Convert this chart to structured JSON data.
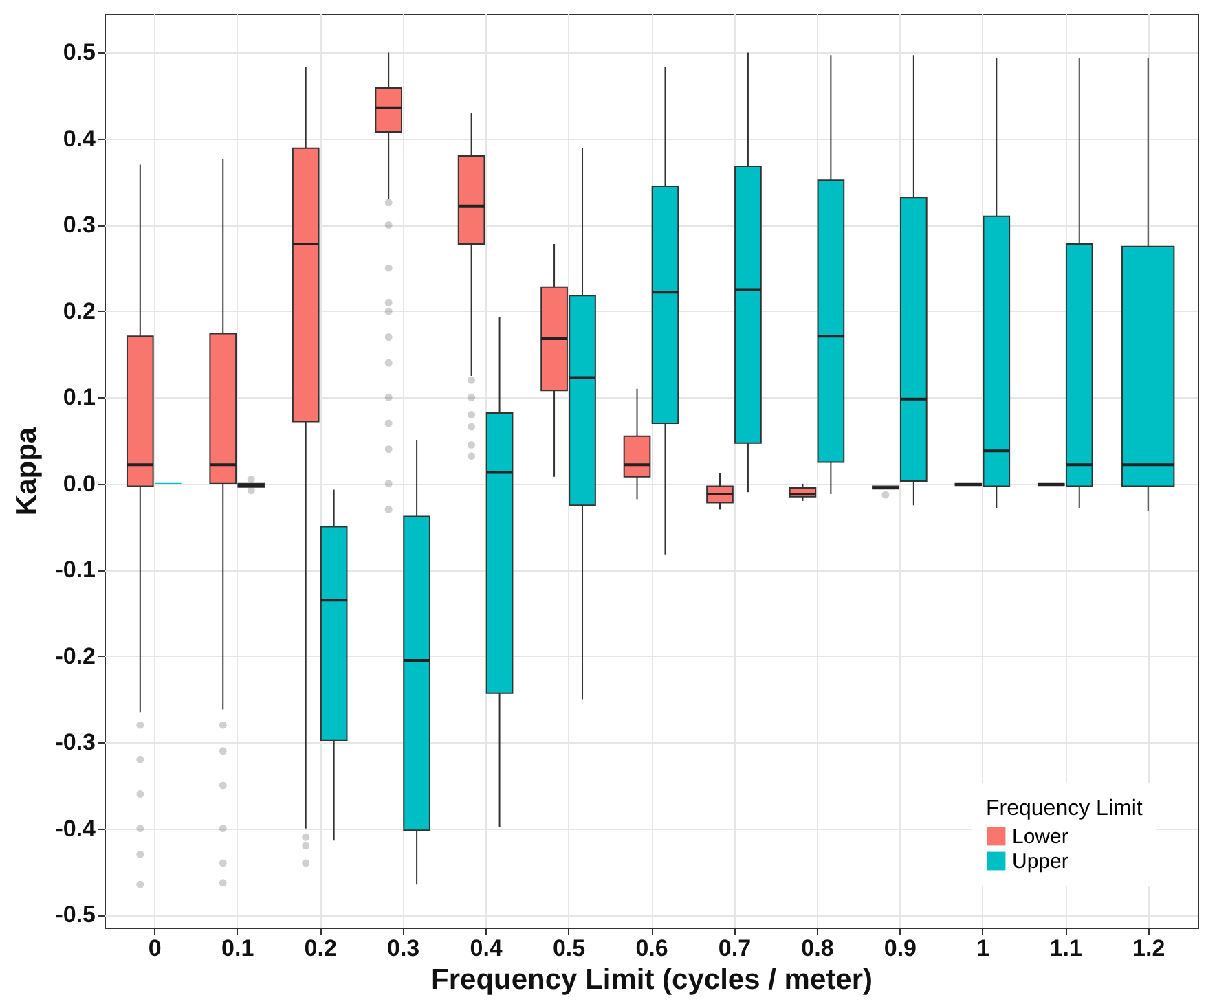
{
  "chart_data": {
    "type": "box",
    "xlabel": "Frequency Limit (cycles / meter)",
    "ylabel": "Kappa",
    "legend_title": "Frequency Limit",
    "legend": "bottom right",
    "grid": true,
    "categories": [
      "0",
      "0.1",
      "0.2",
      "0.3",
      "0.4",
      "0.5",
      "0.6",
      "0.7",
      "0.8",
      "0.9",
      "1",
      "1.1",
      "1.2"
    ],
    "ylim": [
      -0.515,
      0.545
    ],
    "yticks": [
      -0.5,
      -0.4,
      -0.3,
      -0.2,
      -0.1,
      {
        "value": 0,
        "label": "0.0"
      },
      0.1,
      0.2,
      0.3,
      0.4,
      0.5
    ],
    "series": [
      {
        "name": "Lower",
        "color": "#f8766d",
        "boxes": [
          {
            "low": -0.265,
            "q1": -0.003,
            "median": 0.022,
            "q3": 0.171,
            "high": 0.37,
            "outliers": [
              -0.28,
              -0.32,
              -0.36,
              -0.4,
              -0.43,
              -0.465
            ]
          },
          {
            "low": -0.262,
            "q1": 0.0,
            "median": 0.022,
            "q3": 0.174,
            "high": 0.376,
            "outliers": [
              -0.28,
              -0.31,
              -0.35,
              -0.4,
              -0.44,
              -0.463
            ]
          },
          {
            "low": -0.4,
            "q1": 0.072,
            "median": 0.278,
            "q3": 0.389,
            "high": 0.483,
            "outliers": [
              -0.41,
              -0.42,
              -0.44
            ]
          },
          {
            "low": 0.33,
            "q1": 0.408,
            "median": 0.436,
            "q3": 0.459,
            "high": 0.5,
            "outliers": [
              0.326,
              0.3,
              0.25,
              0.21,
              0.2,
              0.17,
              0.14,
              0.1,
              0.07,
              0.04,
              0.0,
              -0.03
            ]
          },
          {
            "low": 0.125,
            "q1": 0.278,
            "median": 0.322,
            "q3": 0.38,
            "high": 0.43,
            "outliers": [
              0.12,
              0.1,
              0.08,
              0.066,
              0.045,
              0.032
            ]
          },
          {
            "low": 0.008,
            "q1": 0.108,
            "median": 0.168,
            "q3": 0.228,
            "high": 0.278
          },
          {
            "low": -0.018,
            "q1": 0.008,
            "median": 0.022,
            "q3": 0.055,
            "high": 0.11
          },
          {
            "low": -0.03,
            "q1": -0.022,
            "median": -0.012,
            "q3": -0.003,
            "high": 0.012
          },
          {
            "low": -0.02,
            "q1": -0.015,
            "median": -0.012,
            "q3": -0.005,
            "high": 0.0
          },
          {
            "low": -0.006,
            "q1": -0.006,
            "median": -0.005,
            "q3": -0.003,
            "high": -0.003,
            "outliers": [
              -0.013
            ]
          },
          {
            "low": -0.002,
            "q1": -0.002,
            "median": -0.001,
            "q3": 0.0,
            "high": 0.0
          },
          {
            "low": -0.002,
            "q1": -0.002,
            "median": -0.001,
            "q3": 0.0,
            "high": 0.0
          },
          null
        ]
      },
      {
        "name": "Upper",
        "color": "#00bfc4",
        "boxes": [
          {
            "low": 0.0,
            "q1": 0.0,
            "median": 0.0,
            "q3": 0.0,
            "high": 0.0
          },
          {
            "low": -0.002,
            "q1": -0.004,
            "median": -0.002,
            "q3": 0.0,
            "high": 0.0,
            "outliers": [
              0.005,
              -0.008
            ]
          },
          {
            "low": -0.414,
            "q1": -0.298,
            "median": -0.135,
            "q3": -0.05,
            "high": -0.007
          },
          {
            "low": -0.465,
            "q1": -0.402,
            "median": -0.205,
            "q3": -0.038,
            "high": 0.05
          },
          {
            "low": -0.398,
            "q1": -0.243,
            "median": 0.013,
            "q3": 0.082,
            "high": 0.193
          },
          {
            "low": -0.25,
            "q1": -0.025,
            "median": 0.123,
            "q3": 0.218,
            "high": 0.389
          },
          {
            "low": -0.082,
            "q1": 0.07,
            "median": 0.222,
            "q3": 0.345,
            "high": 0.483
          },
          {
            "low": -0.01,
            "q1": 0.047,
            "median": 0.225,
            "q3": 0.368,
            "high": 0.5
          },
          {
            "low": -0.012,
            "q1": 0.025,
            "median": 0.171,
            "q3": 0.352,
            "high": 0.497
          },
          {
            "low": -0.025,
            "q1": 0.003,
            "median": 0.098,
            "q3": 0.332,
            "high": 0.497
          },
          {
            "low": -0.028,
            "q1": -0.003,
            "median": 0.038,
            "q3": 0.31,
            "high": 0.494
          },
          {
            "low": -0.028,
            "q1": -0.003,
            "median": 0.022,
            "q3": 0.278,
            "high": 0.494
          },
          {
            "low": -0.032,
            "q1": -0.003,
            "median": 0.022,
            "q3": 0.275,
            "high": 0.494
          }
        ]
      }
    ]
  }
}
